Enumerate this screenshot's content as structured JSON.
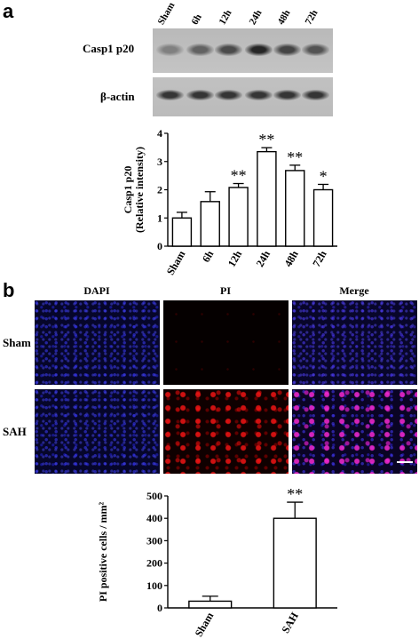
{
  "panels": {
    "a_letter": "a",
    "b_letter": "b"
  },
  "blot": {
    "lanes": [
      "Sham",
      "6h",
      "12h",
      "24h",
      "48h",
      "72h"
    ],
    "rows": [
      "Casp1 p20",
      "β-actin"
    ],
    "casp1_band_intensity": [
      0.35,
      0.55,
      0.7,
      0.95,
      0.75,
      0.65
    ],
    "actin_band_intensity": [
      0.85,
      0.85,
      0.85,
      0.85,
      0.85,
      0.85
    ]
  },
  "chart_data": [
    {
      "type": "bar",
      "categories": [
        "Sham",
        "6h",
        "12h",
        "24h",
        "48h",
        "72h"
      ],
      "values": [
        1.0,
        1.58,
        2.08,
        3.35,
        2.68,
        2.0
      ],
      "errors": [
        0.2,
        0.35,
        0.14,
        0.14,
        0.19,
        0.19
      ],
      "annotations": [
        "",
        "",
        "**",
        "**",
        "**",
        "*"
      ],
      "ylabel": "Casp1 p20",
      "ylabel2": "(Relative intensity)",
      "ylim": [
        0,
        4
      ],
      "yticks": [
        "0",
        "1",
        "2",
        "3",
        "4"
      ],
      "grid": false
    },
    {
      "type": "bar",
      "categories": [
        "Sham",
        "SAH"
      ],
      "values": [
        30,
        400
      ],
      "errors": [
        22,
        72
      ],
      "annotations": [
        "",
        "**"
      ],
      "ylabel": "PI  positive cells / mm²",
      "ylim": [
        0,
        500
      ],
      "yticks": [
        "0",
        "100",
        "200",
        "300",
        "400",
        "500"
      ],
      "grid": false
    }
  ],
  "micrographs": {
    "columns": [
      "DAPI",
      "PI",
      "Merge"
    ],
    "rows": [
      "Sham",
      "SAH"
    ]
  },
  "colors": {
    "dapi": "#2020ff",
    "pi": "#e01010",
    "merge": "#e020c8"
  }
}
